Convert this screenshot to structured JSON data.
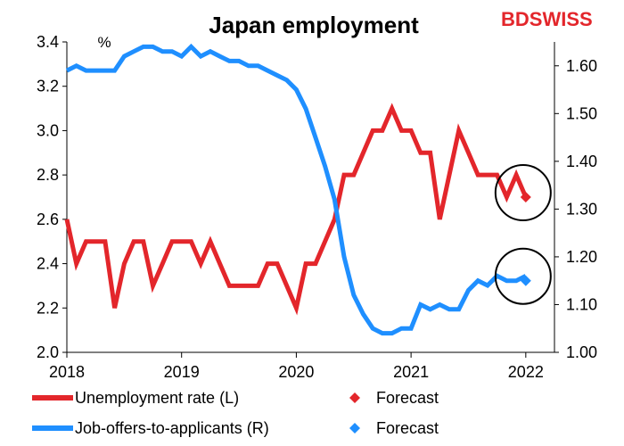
{
  "brand": {
    "part1": "BD",
    "part2": "SWISS",
    "color": "#e3262b"
  },
  "colors": {
    "unemployment": "#e3262b",
    "jobs": "#1f8fff",
    "annotation": "#000000",
    "axis": "#000000"
  },
  "chart_data": {
    "type": "line",
    "title": "Japan employment",
    "left_unit": "%",
    "xlim": [
      2018.0,
      2022.25
    ],
    "x_ticks": [
      "2018",
      "2019",
      "2020",
      "2021",
      "2022"
    ],
    "left_axis": {
      "ylim": [
        2.0,
        3.4
      ],
      "ticks": [
        "2.0",
        "2.2",
        "2.4",
        "2.6",
        "2.8",
        "3.0",
        "3.2",
        "3.4"
      ]
    },
    "right_axis": {
      "ylim": [
        1.0,
        1.65
      ],
      "ticks": [
        "1.00",
        "1.10",
        "1.20",
        "1.30",
        "1.40",
        "1.50",
        "1.60"
      ]
    },
    "series": [
      {
        "name": "Unemployment rate (L)",
        "axis": "left",
        "start": "2018-01",
        "values": [
          2.6,
          2.4,
          2.5,
          2.5,
          2.5,
          2.2,
          2.4,
          2.5,
          2.5,
          2.3,
          2.4,
          2.5,
          2.5,
          2.5,
          2.4,
          2.5,
          2.4,
          2.3,
          2.3,
          2.3,
          2.3,
          2.4,
          2.4,
          2.3,
          2.2,
          2.4,
          2.4,
          2.5,
          2.6,
          2.8,
          2.8,
          2.9,
          3.0,
          3.0,
          3.1,
          3.0,
          3.0,
          2.9,
          2.9,
          2.6,
          2.8,
          3.0,
          2.9,
          2.8,
          2.8,
          2.8,
          2.7,
          2.8,
          2.7
        ]
      },
      {
        "name": "Job-offers-to-applicants (R)",
        "axis": "right",
        "start": "2018-01",
        "values": [
          1.59,
          1.6,
          1.59,
          1.59,
          1.59,
          1.59,
          1.62,
          1.63,
          1.64,
          1.64,
          1.63,
          1.63,
          1.62,
          1.64,
          1.62,
          1.63,
          1.62,
          1.61,
          1.61,
          1.6,
          1.6,
          1.59,
          1.58,
          1.57,
          1.55,
          1.51,
          1.45,
          1.39,
          1.32,
          1.2,
          1.12,
          1.08,
          1.05,
          1.04,
          1.04,
          1.05,
          1.05,
          1.1,
          1.09,
          1.1,
          1.09,
          1.09,
          1.13,
          1.15,
          1.14,
          1.16,
          1.15,
          1.15,
          1.16
        ]
      }
    ],
    "forecasts": [
      {
        "name": "Forecast",
        "series": "Unemployment rate (L)",
        "axis": "left",
        "date": "2022-01",
        "value": 2.7
      },
      {
        "name": "Forecast",
        "series": "Job-offers-to-applicants (R)",
        "axis": "right",
        "date": "2022-01",
        "value": 1.15
      }
    ],
    "legend": {
      "placement": "bottom",
      "items": [
        {
          "label": "Unemployment rate (L)",
          "marker": "line",
          "series": "unemployment"
        },
        {
          "label": "Forecast",
          "marker": "diamond",
          "series": "unemployment"
        },
        {
          "label": "Job-offers-to-applicants (R)",
          "marker": "line",
          "series": "jobs"
        },
        {
          "label": "Forecast",
          "marker": "diamond",
          "series": "jobs"
        }
      ]
    },
    "annotations": [
      {
        "type": "circle",
        "around": "unemployment forecast"
      },
      {
        "type": "circle",
        "around": "job-offers forecast"
      }
    ],
    "grid": false
  }
}
